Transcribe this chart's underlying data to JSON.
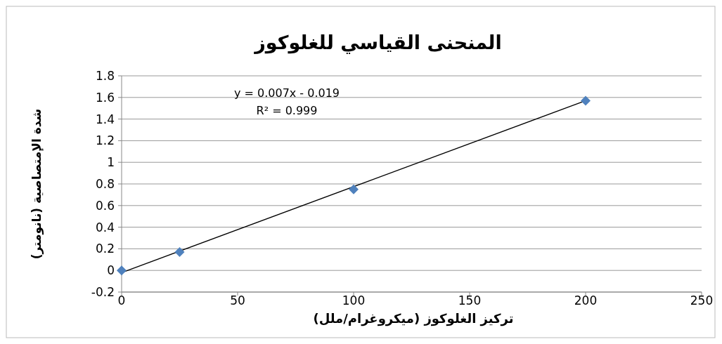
{
  "chart_data": {
    "type": "scatter",
    "title": "المنحنى القياسي للغلوكوز",
    "xlabel": "تركيز الغلوكوز (ميكروغرام/ملل)",
    "ylabel": "شدة الإمتصاصية (نانومتر)",
    "x": [
      0,
      25,
      100,
      200
    ],
    "series": [
      {
        "color": "#4f81bd",
        "marker": "diamond",
        "values": [
          0,
          0.17,
          0.75,
          1.57
        ]
      },
      {
        "type": "line",
        "color": "#000000",
        "marker": "none",
        "x": [
          0,
          200
        ],
        "values": [
          -0.02,
          1.57
        ]
      }
    ],
    "annotations": [
      "y = 0.007x - 0.019",
      "R² = 0.999"
    ],
    "xlim": [
      0,
      250
    ],
    "xticks": [
      0,
      50,
      100,
      150,
      200,
      250
    ],
    "ylim": [
      -0.2,
      1.8
    ],
    "yticks": [
      -0.2,
      0,
      0.2,
      0.4,
      0.6,
      0.8,
      1,
      1.2,
      1.4,
      1.6,
      1.8
    ],
    "grid": "y"
  }
}
